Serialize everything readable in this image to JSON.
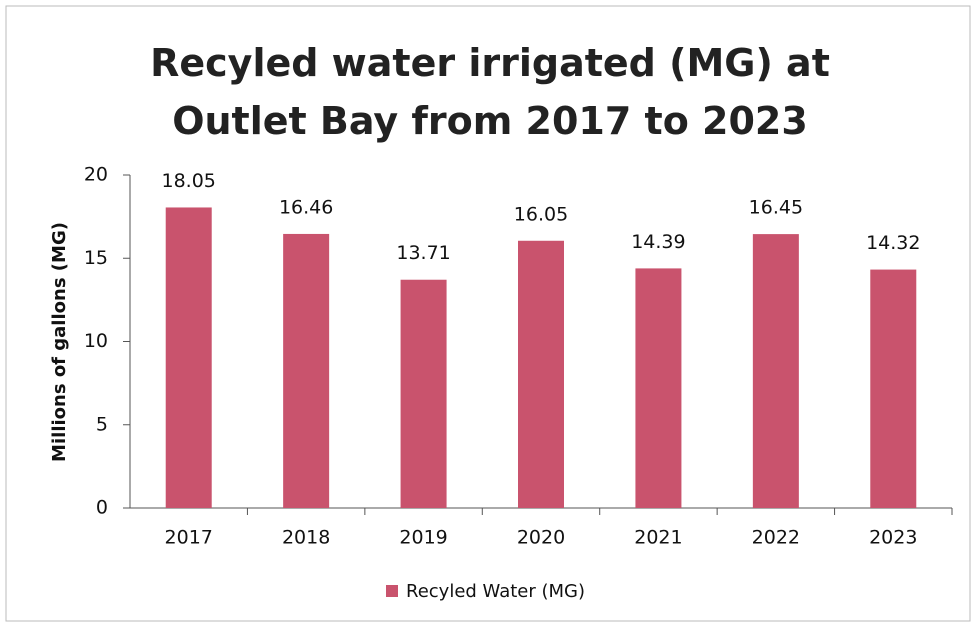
{
  "chart_data": {
    "type": "bar",
    "title": "Recyled water irrigated (MG) at Outlet Bay from 2017 to 2023",
    "y_label": "Millions of gallons (MG)",
    "categories": [
      "2017",
      "2018",
      "2019",
      "2020",
      "2021",
      "2022",
      "2023"
    ],
    "series": [
      {
        "name": "Recyled Water (MG)",
        "color": "#c9536d",
        "values": [
          18.05,
          16.46,
          13.71,
          16.05,
          14.39,
          16.45,
          14.32
        ]
      }
    ],
    "ylim": [
      0,
      20
    ],
    "yticks": [
      0,
      5,
      10,
      15,
      20
    ],
    "grid": false,
    "legend": "bottom"
  }
}
